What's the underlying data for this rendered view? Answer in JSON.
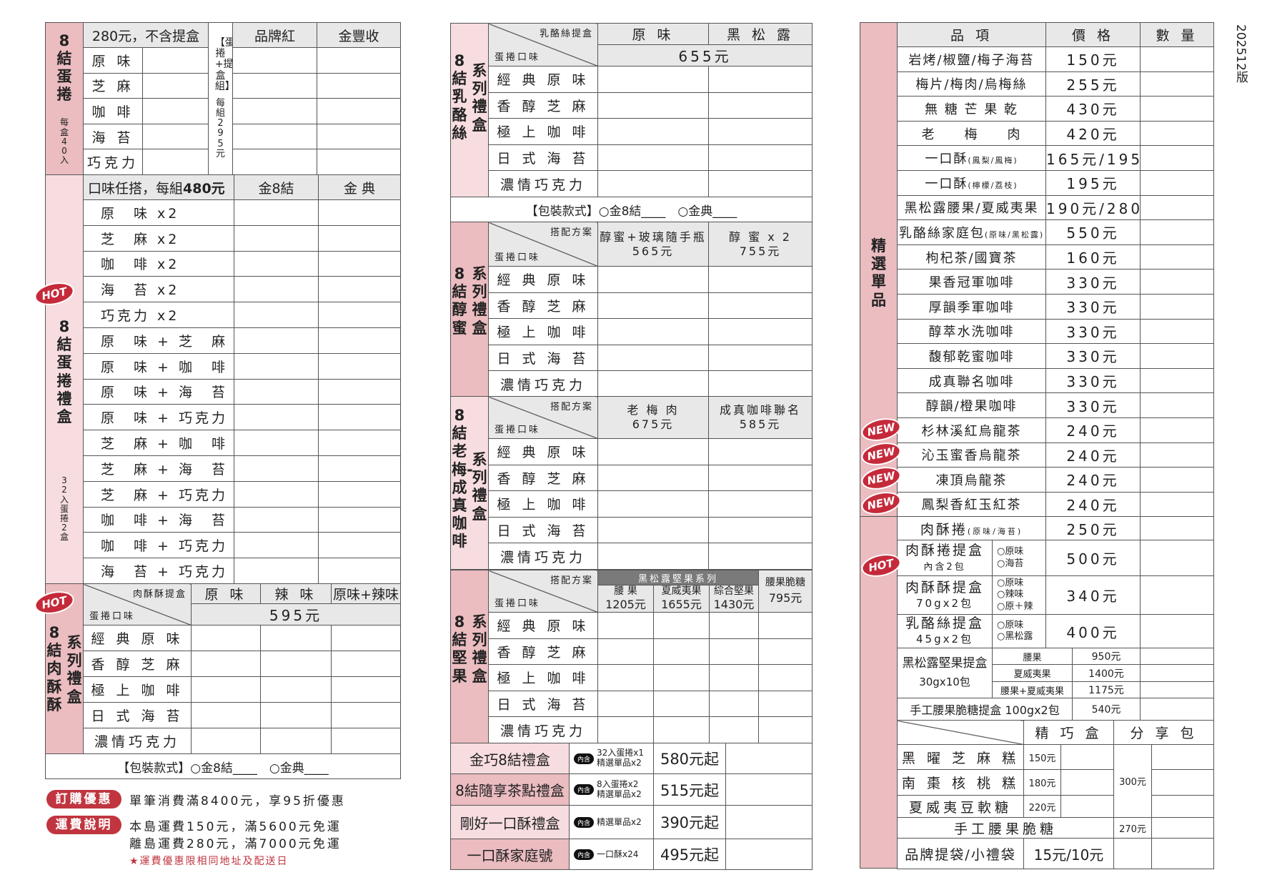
{
  "version": "202512版",
  "flavors": [
    "經 典 原 味",
    "香 醇 芝 麻",
    "極 上 咖 啡",
    "日 式 海 苔",
    "濃情巧克力"
  ],
  "corner": {
    "plan": "搭配方案",
    "flavor": "蛋捲口味"
  },
  "package": {
    "label": "【包裝款式】",
    "opt1": "○金8結",
    "opt2": "○金典",
    "blank": "____"
  },
  "left": {
    "s1": {
      "label": "8結蛋捲",
      "sub": "每盒40入",
      "header": "280元，不含提盒",
      "flavors": [
        "原 味",
        "芝 麻",
        "咖 啡",
        "海 苔",
        "巧克力"
      ],
      "set_label": "【蛋捲+提盒組】",
      "set_price": "每組295元",
      "cols": [
        "品牌紅",
        "金豐收"
      ]
    },
    "s2": {
      "badge": "HOT",
      "label": "8結蛋捲禮盒",
      "sub": "32入蛋捲2盒",
      "header": "口味任搭，每組",
      "header_price": "480元",
      "cols": [
        "金8結",
        "金 典"
      ],
      "items": [
        "原　味 x2",
        "芝　麻 x2",
        "咖　啡 x2",
        "海　苔 x2",
        "巧克力 x2",
        "原　味 + 芝　麻",
        "原　味 + 咖　啡",
        "原　味 + 海　苔",
        "原　味 + 巧克力",
        "芝　麻 + 咖　啡",
        "芝　麻 + 海　苔",
        "芝　麻 + 巧克力",
        "咖　啡 + 海　苔",
        "咖　啡 + 巧克力",
        "海　苔 + 巧克力"
      ]
    },
    "s3": {
      "badge": "HOT",
      "label_main": "8結肉酥酥",
      "label_side": "系列禮盒",
      "corner_top": "肉酥酥提盒",
      "cols": [
        "原 味",
        "辣 味",
        "原味+辣味"
      ],
      "price": "595元"
    }
  },
  "promos": [
    {
      "tag": "訂購優惠",
      "lines": [
        "單筆消費滿8400元，享95折優惠"
      ]
    },
    {
      "tag": "運費說明",
      "lines": [
        "本島運費150元，滿5600元免運",
        "離島運費280元，滿7000元免運"
      ]
    }
  ],
  "shipping_note": "★運費優惠限相同地址及配送日",
  "middle": {
    "a": {
      "label_main": "8結乳酪絲",
      "label_side": "系列禮盒",
      "corner_top": "乳酪絲提盒",
      "cols": [
        "原 味",
        "黑 松 露"
      ],
      "price": "655元"
    },
    "b": {
      "label_main": "8結醇蜜",
      "label_side": "系列禮盒",
      "cols": [
        {
          "name": "醇蜜+玻璃隨手瓶",
          "price": "565元"
        },
        {
          "name": "醇 蜜 x 2",
          "price": "755元"
        }
      ]
    },
    "c": {
      "label_main": "8結老梅-成真咖啡",
      "label_side": "系列禮盒",
      "cols": [
        {
          "name": "老 梅 肉",
          "price": "675元"
        },
        {
          "name": "成真咖啡聯名",
          "price": "585元"
        }
      ]
    },
    "d": {
      "label_main": "8結堅果",
      "label_side": "系列禮盒",
      "band": "黑松露堅果系列",
      "cols": [
        {
          "name": "腰 果",
          "price": "1205元"
        },
        {
          "name": "夏威夷果",
          "price": "1655元"
        },
        {
          "name": "綜合堅果",
          "price": "1430元"
        }
      ],
      "extra": {
        "name": "腰果脆糖",
        "price": "795元"
      }
    },
    "gift_boxes": [
      {
        "name": "金巧8結禮盒",
        "tag": "內含",
        "includes": [
          "32入蛋捲x1",
          "精選單品x2"
        ],
        "price": "580元起"
      },
      {
        "name": "8結隨享茶點禮盒",
        "tag": "內含",
        "includes": [
          "8入蛋捲x2",
          "精選單品x2"
        ],
        "price": "515元起"
      },
      {
        "name": "剛好一口酥禮盒",
        "tag": "內含",
        "includes": [
          "精選單品x2"
        ],
        "price": "390元起"
      },
      {
        "name": "一口酥家庭號",
        "tag": "內含",
        "includes": [
          "一口酥x24"
        ],
        "price": "495元起"
      }
    ]
  },
  "right": {
    "label": "精選單品",
    "headers": [
      "品 項",
      "價 格",
      "數 量"
    ],
    "items": [
      {
        "name": "岩烤/椒鹽/梅子海苔",
        "note": "",
        "price": "150元"
      },
      {
        "name": "梅片/梅肉/烏梅絲",
        "note": "",
        "price": "255元"
      },
      {
        "name": "無 糖 芒 果 乾",
        "note": "",
        "price": "430元"
      },
      {
        "name": "老　　梅　　肉",
        "note": "",
        "price": "420元"
      },
      {
        "name": "一口酥",
        "note": "(鳳梨/鳳梅)",
        "price": "165元/195元"
      },
      {
        "name": "一口酥",
        "note": "(檸檬/荔枝)",
        "price": "195元"
      },
      {
        "name": "黑松露腰果/夏威夷果",
        "note": "",
        "price": "190元/280元"
      },
      {
        "name": "乳酪絲家庭包",
        "note": "(原味/黑松露)",
        "price": "550元"
      },
      {
        "name": "枸杞茶/國寶茶",
        "note": "",
        "price": "160元"
      },
      {
        "name": "果香冠軍咖啡",
        "note": "",
        "price": "330元"
      },
      {
        "name": "厚韻季軍咖啡",
        "note": "",
        "price": "330元"
      },
      {
        "name": "醇萃水洗咖啡",
        "note": "",
        "price": "330元"
      },
      {
        "name": "馥郁乾蜜咖啡",
        "note": "",
        "price": "330元"
      },
      {
        "name": "成真聯名咖啡",
        "note": "",
        "price": "330元"
      },
      {
        "name": "醇韻/橙果咖啡",
        "note": "",
        "price": "330元"
      },
      {
        "name": "杉林溪紅烏龍茶",
        "note": "",
        "price": "240元",
        "badge": "NEW"
      },
      {
        "name": "沁玉蜜香烏龍茶",
        "note": "",
        "price": "240元",
        "badge": "NEW"
      },
      {
        "name": "凍頂烏龍茶",
        "note": "",
        "price": "240元",
        "badge": "NEW"
      },
      {
        "name": "鳳梨香紅玉紅茶",
        "note": "",
        "price": "240元",
        "badge": "NEW"
      }
    ],
    "roll": {
      "name": "肉酥捲",
      "note": "(原味/海苔)",
      "price": "250元"
    },
    "boxes": [
      {
        "name": "肉酥捲提盒",
        "sub": "內含2包",
        "options": [
          "○原味",
          "○海苔"
        ],
        "price": "500元",
        "badge": "HOT"
      },
      {
        "name": "肉酥酥提盒",
        "sub": "70gx2包",
        "options": [
          "○原味",
          "○辣味",
          "○原＋辣"
        ],
        "price": "340元"
      },
      {
        "name": "乳酪絲提盒",
        "sub": "45gx2包",
        "options": [
          "○原味",
          "○黑松露"
        ],
        "price": "400元"
      }
    ],
    "nut_box": {
      "name": "黑松露堅果提盒",
      "sub": "30gx10包",
      "variants": [
        {
          "name": "腰果",
          "price": "950元"
        },
        {
          "name": "夏威夷果",
          "price": "1400元"
        },
        {
          "name": "腰果+夏威夷果",
          "price": "1175元"
        }
      ]
    },
    "brittle_box": {
      "name": "手工腰果脆糖提盒 100gx2包",
      "price": "540元"
    },
    "snacks": {
      "cols": [
        "精 巧 盒",
        "分 享 包"
      ],
      "items": [
        {
          "name": "黑 曜 芝 麻 糕",
          "price": "150元"
        },
        {
          "name": "南 棗 核 桃 糕",
          "price": "180元"
        },
        {
          "name": "夏威夷豆軟糖",
          "price": "220元"
        }
      ],
      "share_price": "300元",
      "brittle": {
        "name": "手工腰果脆糖",
        "price": "270元"
      }
    },
    "bags": {
      "name": "品牌提袋/小禮袋",
      "price": "15元/10元"
    }
  }
}
